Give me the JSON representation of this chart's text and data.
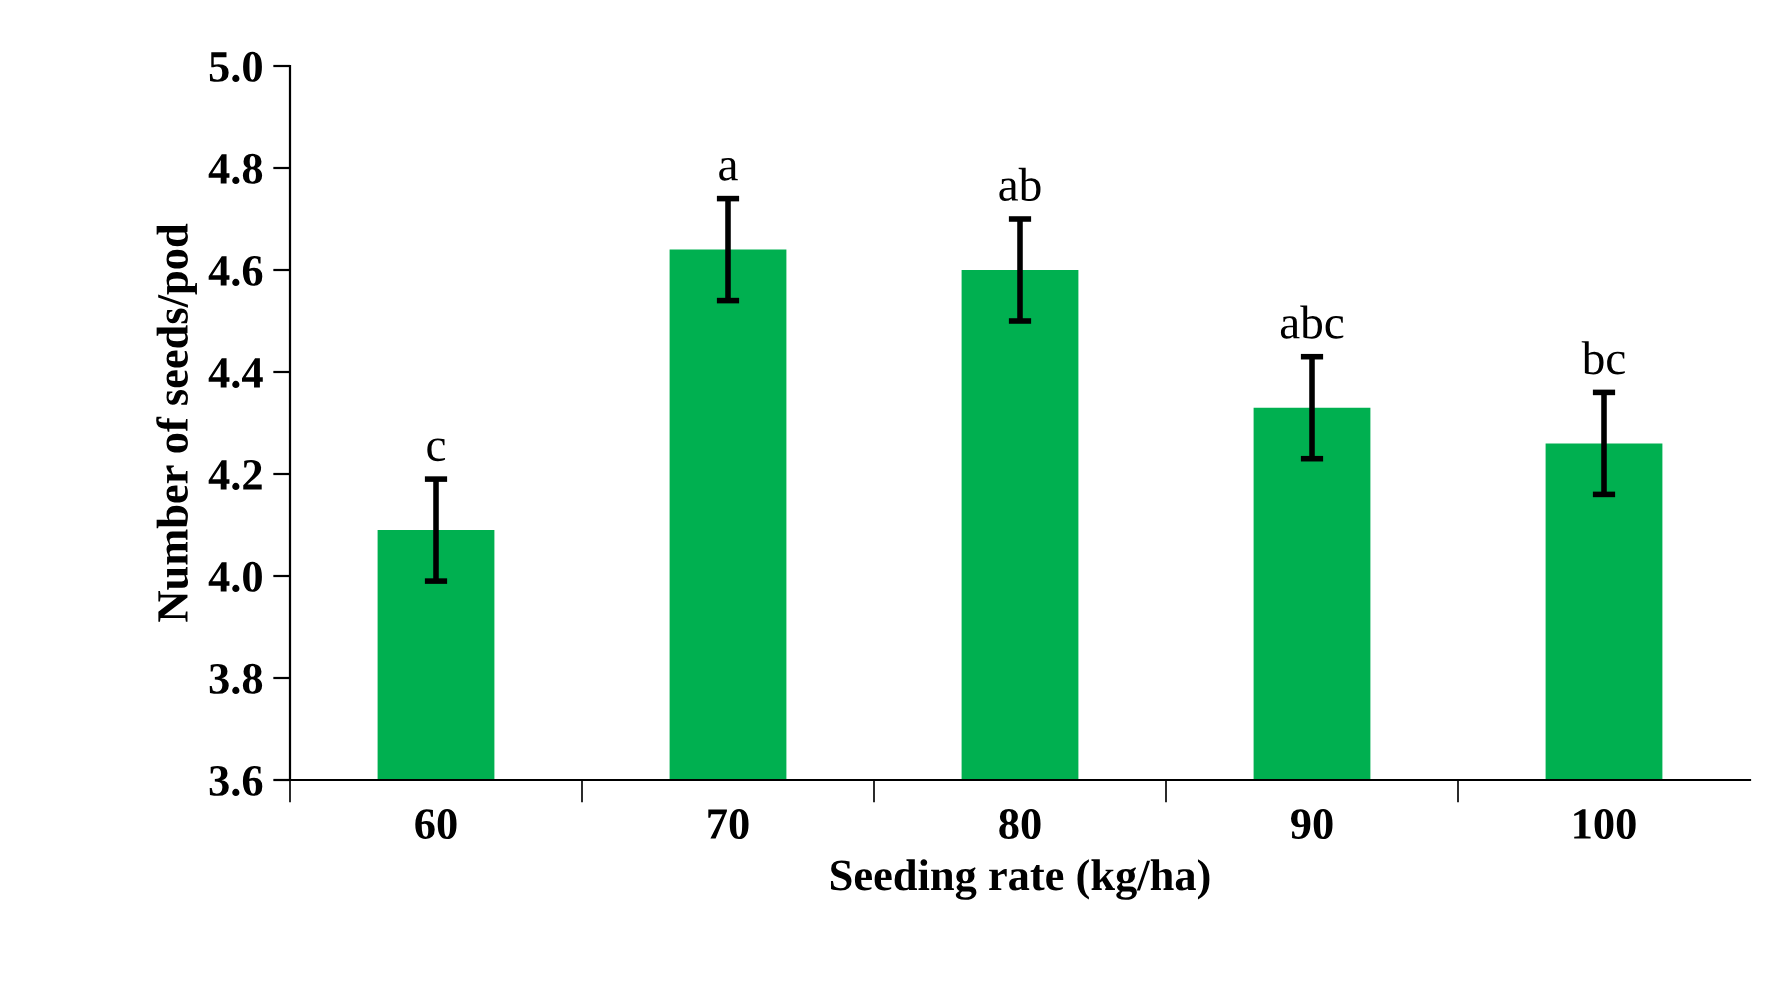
{
  "chart_data": {
    "type": "bar",
    "xlabel": "Seeding rate (kg/ha)",
    "ylabel": "Number of seeds/pod",
    "categories": [
      "60",
      "70",
      "80",
      "90",
      "100"
    ],
    "values": [
      4.09,
      4.64,
      4.6,
      4.33,
      4.26
    ],
    "errors": [
      0.1,
      0.1,
      0.1,
      0.1,
      0.1
    ],
    "color": "#00b050",
    "ylim": [
      3.6,
      5.0
    ],
    "yticks": [
      {
        "value": 3.6,
        "label": "3.6"
      },
      {
        "value": 3.8,
        "label": "3.8"
      },
      {
        "value": 4.0,
        "label": "4.0"
      },
      {
        "value": 4.2,
        "label": "4.2"
      },
      {
        "value": 4.4,
        "label": "4.4"
      },
      {
        "value": 4.6,
        "label": "4.6"
      },
      {
        "value": 4.8,
        "label": "4.8"
      },
      {
        "value": 5.0,
        "label": "5.0"
      }
    ],
    "grid": false,
    "legend": false,
    "annotations": [
      {
        "text": "c",
        "x": "60",
        "y": 4.19
      },
      {
        "text": "a",
        "x": "70",
        "y": 4.74
      },
      {
        "text": "ab",
        "x": "80",
        "y": 4.7
      },
      {
        "text": "abc",
        "x": "90",
        "y": 4.43
      },
      {
        "text": "bc",
        "x": "100",
        "y": 4.36
      }
    ]
  }
}
